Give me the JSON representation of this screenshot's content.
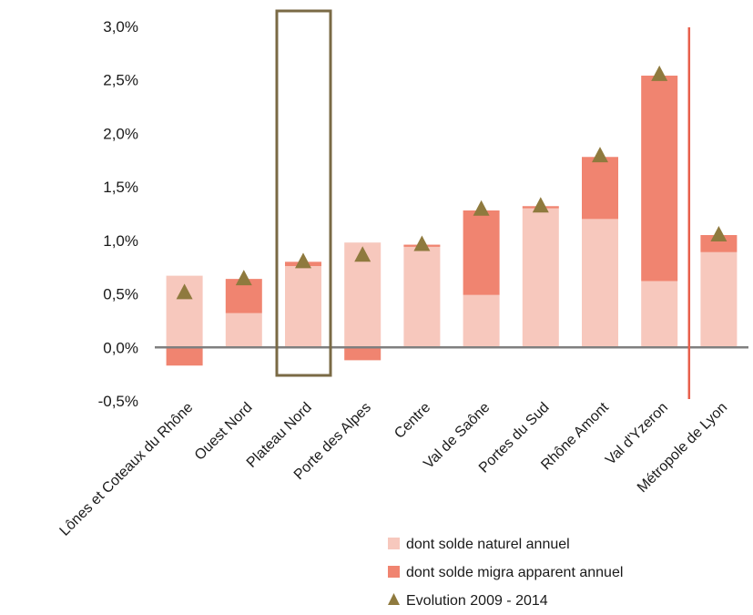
{
  "chart_data": {
    "type": "bar",
    "stacked": true,
    "categories": [
      "Lônes et Coteaux du Rhône",
      "Ouest Nord",
      "Plateau Nord",
      "Porte des Alpes",
      "Centre",
      "Val de Saône",
      "Portes du Sud",
      "Rhône Amont",
      "Val d'Yzeron",
      "Métropole de Lyon"
    ],
    "series": [
      {
        "name": "dont solde naturel annuel",
        "kind": "bar",
        "color": "#f7c8bd",
        "values": [
          0.67,
          0.32,
          0.76,
          0.98,
          0.94,
          0.49,
          1.3,
          1.2,
          0.62,
          0.89
        ]
      },
      {
        "name": "dont solde migra apparent annuel",
        "kind": "bar",
        "color": "#f08470",
        "values": [
          -0.17,
          0.32,
          0.04,
          -0.12,
          0.02,
          0.79,
          0.02,
          0.58,
          1.92,
          0.16
        ]
      },
      {
        "name": "Evolution 2009 - 2014",
        "kind": "marker",
        "marker": "triangle",
        "color": "#8f7a3e",
        "values": [
          0.51,
          0.64,
          0.8,
          0.86,
          0.96,
          1.29,
          1.32,
          1.79,
          2.55,
          1.05
        ]
      }
    ],
    "yaxis": {
      "min": -0.5,
      "max": 3.0,
      "step": 0.5,
      "tick_labels": [
        "-0,5%",
        "0,0%",
        "0,5%",
        "1,0%",
        "1,5%",
        "2,0%",
        "2,5%",
        "3,0%"
      ]
    },
    "grid": false,
    "legend_position": "bottom-right",
    "highlight_box_category": "Plateau Nord",
    "highlight_box_color": "#7a6a45",
    "separator_before_category": "Métropole de Lyon",
    "separator_color": "#e8604c",
    "zero_line_color": "#7f7f7f"
  }
}
